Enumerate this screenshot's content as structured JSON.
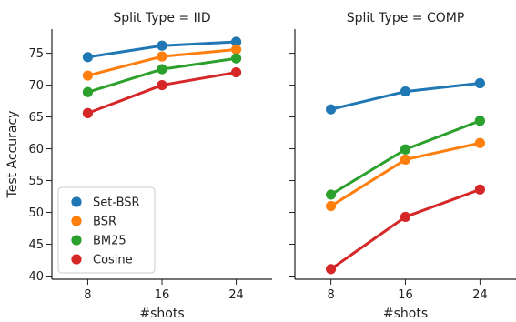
{
  "chart_data": {
    "type": "line",
    "ylabel": "Test Accuracy",
    "xlabel": "#shots",
    "x_categories": [
      "8",
      "16",
      "24"
    ],
    "y_ticks": [
      40,
      45,
      50,
      55,
      60,
      65,
      70,
      75
    ],
    "ylim": [
      39.5,
      78.8
    ],
    "grid": false,
    "legend": {
      "placement": "lower-left of left panel",
      "entries": [
        "Set-BSR",
        "BSR",
        "BM25",
        "Cosine"
      ]
    },
    "colors": {
      "Set-BSR": "#1f77b4",
      "BSR": "#ff7f0e",
      "BM25": "#2ca02c",
      "Cosine": "#d62728"
    },
    "panels": [
      {
        "title": "Split Type = IID",
        "series": [
          {
            "name": "Set-BSR",
            "values": [
              74.4,
              76.2,
              76.8
            ]
          },
          {
            "name": "BSR",
            "values": [
              71.5,
              74.5,
              75.6
            ]
          },
          {
            "name": "BM25",
            "values": [
              68.9,
              72.5,
              74.2
            ]
          },
          {
            "name": "Cosine",
            "values": [
              65.6,
              70.0,
              72.0
            ]
          }
        ]
      },
      {
        "title": "Split Type = COMP",
        "series": [
          {
            "name": "Set-BSR",
            "values": [
              66.2,
              69.0,
              70.3
            ]
          },
          {
            "name": "BSR",
            "values": [
              51.0,
              58.3,
              60.9
            ]
          },
          {
            "name": "BM25",
            "values": [
              52.8,
              59.9,
              64.4
            ]
          },
          {
            "name": "Cosine",
            "values": [
              41.1,
              49.3,
              53.6
            ]
          }
        ]
      }
    ]
  }
}
